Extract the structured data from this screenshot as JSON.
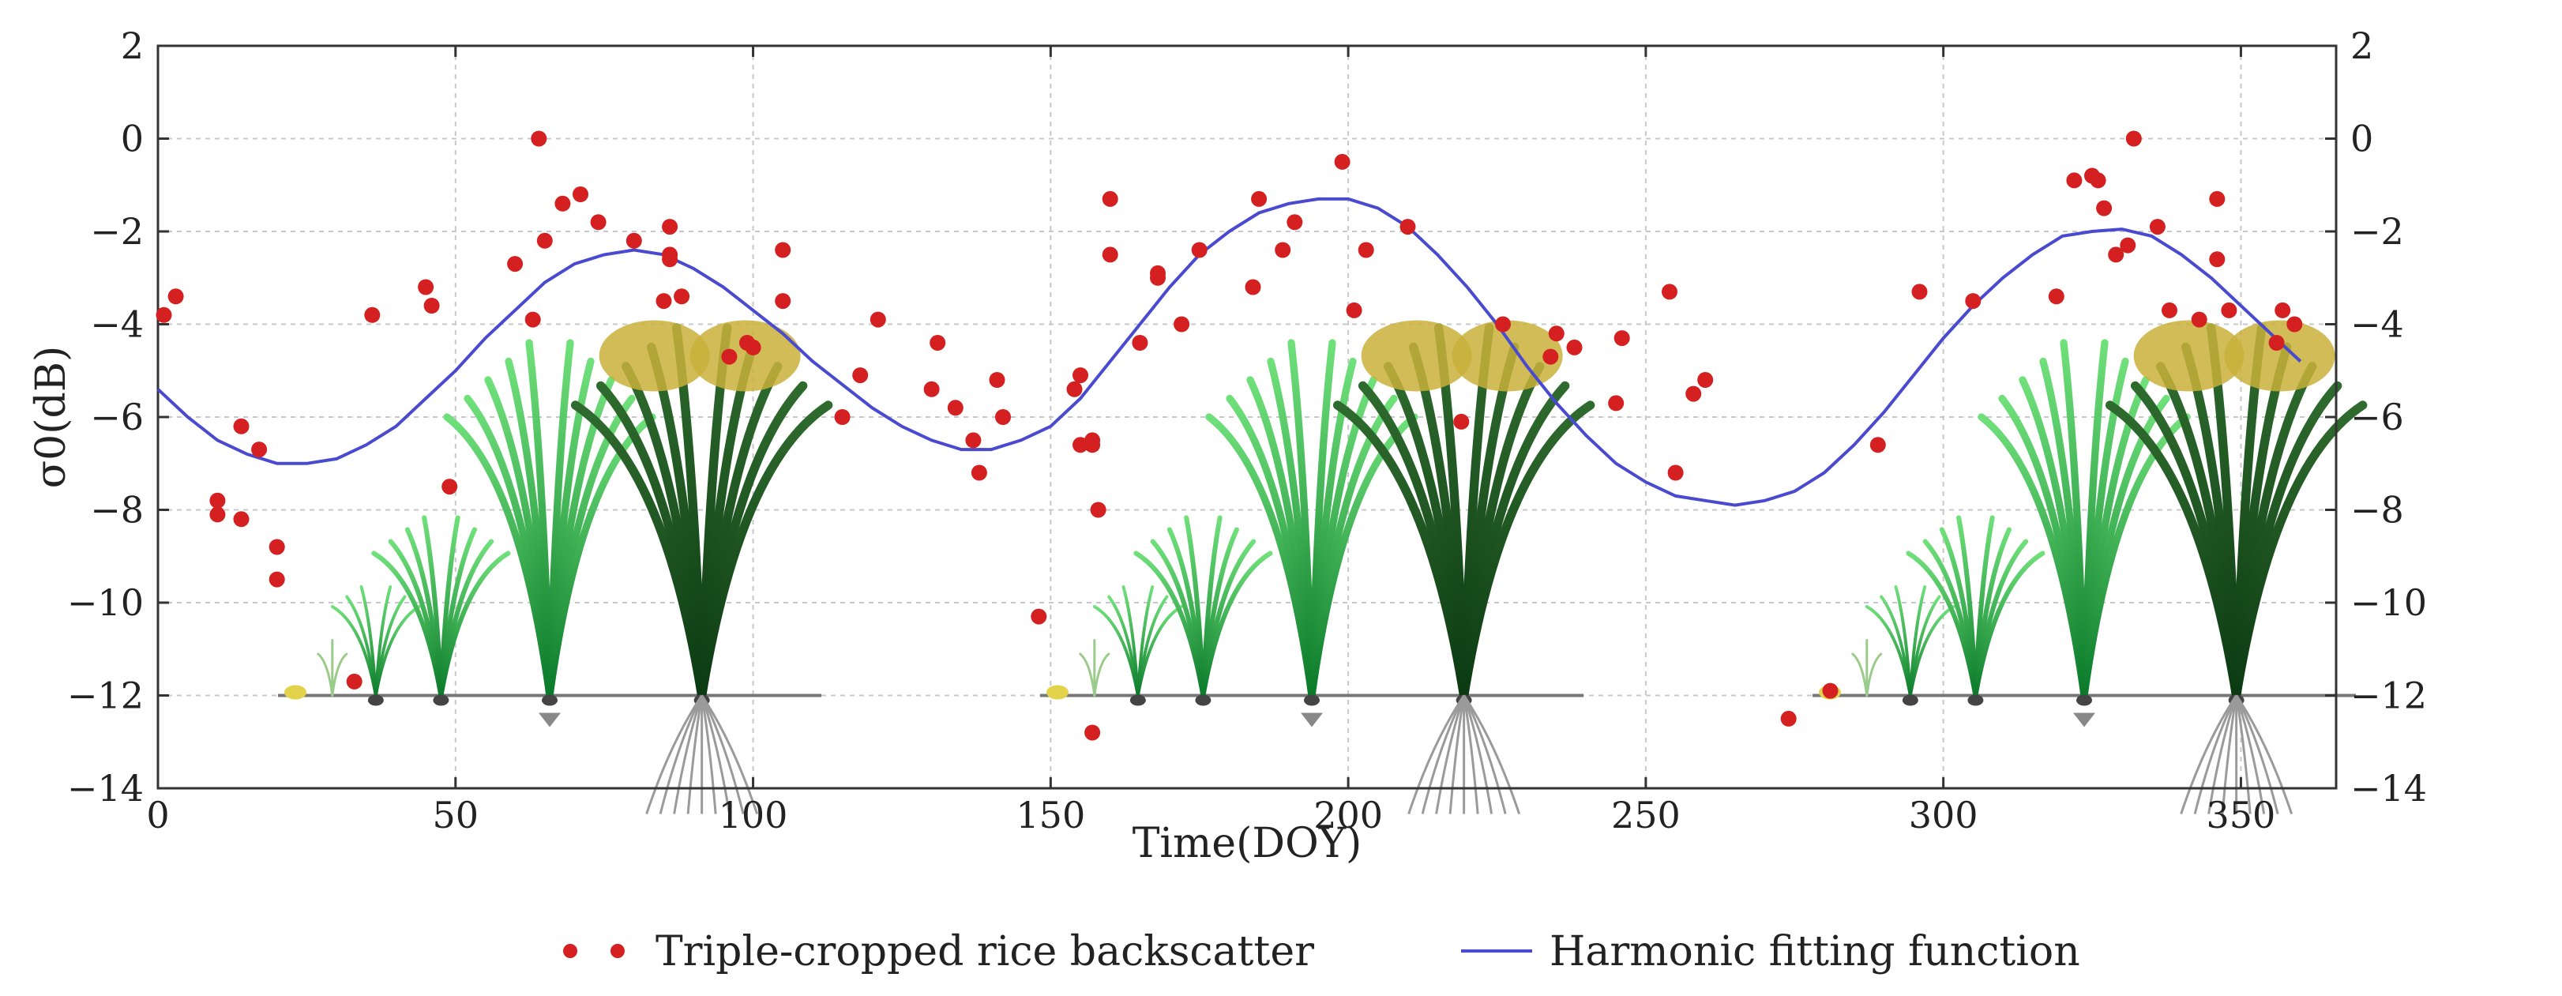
{
  "chart_data": {
    "type": "scatter",
    "title": "",
    "xlabel": "Time(DOY)",
    "ylabel": "σ0(dB)",
    "xlim": [
      0,
      366
    ],
    "ylim": [
      -14,
      2
    ],
    "xticks": [
      0,
      50,
      100,
      150,
      200,
      250,
      300,
      350
    ],
    "yticks": [
      2,
      0,
      -2,
      -4,
      -6,
      -8,
      -10,
      -12,
      -14
    ],
    "grid": true,
    "legend_position": "bottom",
    "series": [
      {
        "name": "Triple-cropped rice backscatter",
        "kind": "scatter",
        "color": "#d42020",
        "points": [
          [
            1,
            -3.8
          ],
          [
            3,
            -3.4
          ],
          [
            10,
            -7.8
          ],
          [
            10,
            -8.1
          ],
          [
            14,
            -8.2
          ],
          [
            14,
            -6.2
          ],
          [
            17,
            -6.7
          ],
          [
            20,
            -8.8
          ],
          [
            20,
            -9.5
          ],
          [
            33,
            -11.7
          ],
          [
            36,
            -3.8
          ],
          [
            45,
            -3.2
          ],
          [
            46,
            -3.6
          ],
          [
            49,
            -7.5
          ],
          [
            60,
            -2.7
          ],
          [
            63,
            -3.9
          ],
          [
            64,
            0.0
          ],
          [
            65,
            -2.2
          ],
          [
            68,
            -1.4
          ],
          [
            71,
            -1.2
          ],
          [
            74,
            -1.8
          ],
          [
            80,
            -2.2
          ],
          [
            85,
            -3.5
          ],
          [
            86,
            -1.9
          ],
          [
            86,
            -2.5
          ],
          [
            86,
            -2.6
          ],
          [
            88,
            -3.4
          ],
          [
            96,
            -4.7
          ],
          [
            99,
            -4.4
          ],
          [
            100,
            -4.5
          ],
          [
            105,
            -2.4
          ],
          [
            105,
            -3.5
          ],
          [
            115,
            -6.0
          ],
          [
            118,
            -5.1
          ],
          [
            121,
            -3.9
          ],
          [
            130,
            -5.4
          ],
          [
            131,
            -4.4
          ],
          [
            134,
            -5.8
          ],
          [
            137,
            -6.5
          ],
          [
            138,
            -7.2
          ],
          [
            141,
            -5.2
          ],
          [
            142,
            -6.0
          ],
          [
            148,
            -10.3
          ],
          [
            154,
            -5.4
          ],
          [
            155,
            -5.1
          ],
          [
            155,
            -6.6
          ],
          [
            157,
            -6.5
          ],
          [
            157,
            -6.6
          ],
          [
            158,
            -8.0
          ],
          [
            157,
            -12.8
          ],
          [
            160,
            -1.3
          ],
          [
            160,
            -2.5
          ],
          [
            165,
            -4.4
          ],
          [
            168,
            -2.9
          ],
          [
            168,
            -3.0
          ],
          [
            172,
            -4.0
          ],
          [
            175,
            -2.4
          ],
          [
            184,
            -3.2
          ],
          [
            185,
            -1.3
          ],
          [
            189,
            -2.4
          ],
          [
            191,
            -1.8
          ],
          [
            199,
            -0.5
          ],
          [
            201,
            -3.7
          ],
          [
            203,
            -2.4
          ],
          [
            210,
            -1.9
          ],
          [
            219,
            -6.1
          ],
          [
            226,
            -4.0
          ],
          [
            234,
            -4.7
          ],
          [
            235,
            -4.2
          ],
          [
            238,
            -4.5
          ],
          [
            245,
            -5.7
          ],
          [
            246,
            -4.3
          ],
          [
            254,
            -3.3
          ],
          [
            255,
            -7.2
          ],
          [
            258,
            -5.5
          ],
          [
            260,
            -5.2
          ],
          [
            274,
            -12.5
          ],
          [
            281,
            -11.9
          ],
          [
            289,
            -6.6
          ],
          [
            296,
            -3.3
          ],
          [
            305,
            -3.5
          ],
          [
            319,
            -3.4
          ],
          [
            322,
            -0.9
          ],
          [
            325,
            -0.8
          ],
          [
            326,
            -0.9
          ],
          [
            327,
            -1.5
          ],
          [
            329,
            -2.5
          ],
          [
            331,
            -2.3
          ],
          [
            332,
            0.0
          ],
          [
            336,
            -1.9
          ],
          [
            338,
            -3.7
          ],
          [
            343,
            -3.9
          ],
          [
            346,
            -1.3
          ],
          [
            346,
            -2.6
          ],
          [
            348,
            -3.7
          ],
          [
            356,
            -4.4
          ],
          [
            357,
            -3.7
          ],
          [
            359,
            -4.0
          ]
        ]
      },
      {
        "name": "Harmonic fitting function",
        "kind": "line",
        "color": "#4a4ad0",
        "points": [
          [
            0,
            -5.4
          ],
          [
            5,
            -6.0
          ],
          [
            10,
            -6.5
          ],
          [
            15,
            -6.8
          ],
          [
            20,
            -7.0
          ],
          [
            25,
            -7.0
          ],
          [
            30,
            -6.9
          ],
          [
            35,
            -6.6
          ],
          [
            40,
            -6.2
          ],
          [
            45,
            -5.6
          ],
          [
            50,
            -5.0
          ],
          [
            55,
            -4.3
          ],
          [
            60,
            -3.7
          ],
          [
            65,
            -3.1
          ],
          [
            70,
            -2.7
          ],
          [
            75,
            -2.5
          ],
          [
            80,
            -2.4
          ],
          [
            85,
            -2.5
          ],
          [
            90,
            -2.8
          ],
          [
            95,
            -3.2
          ],
          [
            100,
            -3.7
          ],
          [
            105,
            -4.2
          ],
          [
            110,
            -4.8
          ],
          [
            115,
            -5.3
          ],
          [
            120,
            -5.8
          ],
          [
            125,
            -6.2
          ],
          [
            130,
            -6.5
          ],
          [
            135,
            -6.7
          ],
          [
            140,
            -6.7
          ],
          [
            145,
            -6.5
          ],
          [
            150,
            -6.2
          ],
          [
            155,
            -5.6
          ],
          [
            160,
            -4.8
          ],
          [
            165,
            -4.0
          ],
          [
            170,
            -3.2
          ],
          [
            175,
            -2.5
          ],
          [
            180,
            -2.0
          ],
          [
            185,
            -1.6
          ],
          [
            190,
            -1.4
          ],
          [
            195,
            -1.3
          ],
          [
            200,
            -1.3
          ],
          [
            205,
            -1.5
          ],
          [
            210,
            -1.9
          ],
          [
            215,
            -2.5
          ],
          [
            220,
            -3.2
          ],
          [
            225,
            -4.0
          ],
          [
            230,
            -4.9
          ],
          [
            235,
            -5.7
          ],
          [
            240,
            -6.4
          ],
          [
            245,
            -7.0
          ],
          [
            250,
            -7.4
          ],
          [
            255,
            -7.7
          ],
          [
            260,
            -7.8
          ],
          [
            265,
            -7.9
          ],
          [
            270,
            -7.8
          ],
          [
            275,
            -7.6
          ],
          [
            280,
            -7.2
          ],
          [
            285,
            -6.6
          ],
          [
            290,
            -5.9
          ],
          [
            295,
            -5.1
          ],
          [
            300,
            -4.3
          ],
          [
            305,
            -3.6
          ],
          [
            310,
            -3.0
          ],
          [
            315,
            -2.5
          ],
          [
            320,
            -2.1
          ],
          [
            325,
            -2.0
          ],
          [
            330,
            -1.95
          ],
          [
            335,
            -2.1
          ],
          [
            340,
            -2.5
          ],
          [
            345,
            -3.0
          ],
          [
            350,
            -3.6
          ],
          [
            355,
            -4.2
          ],
          [
            360,
            -4.8
          ]
        ]
      }
    ]
  }
}
